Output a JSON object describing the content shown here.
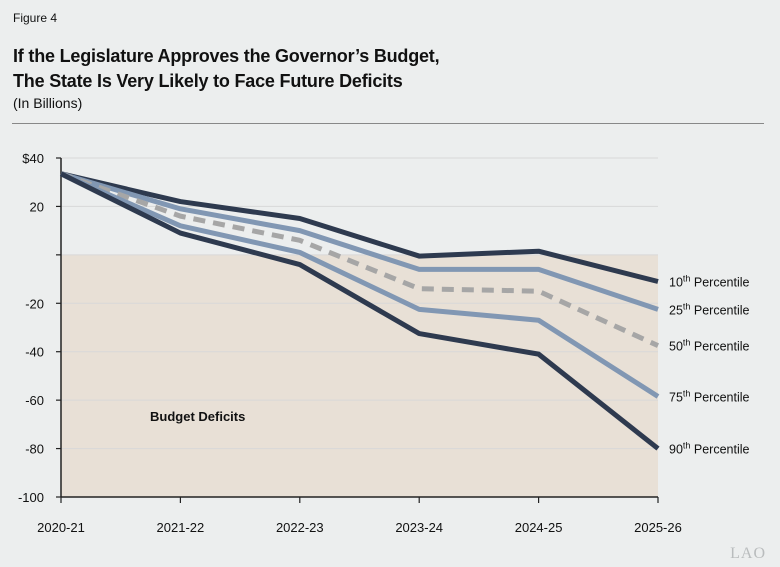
{
  "figure_label": "Figure 4",
  "title_line1": "If the Legislature Approves the Governor’s Budget,",
  "title_line2": "The State Is Very Likely to Face Future Deficits",
  "subtitle": "(In Billions)",
  "logo": "LAO",
  "chart_data": {
    "type": "line",
    "categories": [
      "2020-21",
      "2021-22",
      "2022-23",
      "2023-24",
      "2024-25",
      "2025-26"
    ],
    "ylim": [
      -100,
      40
    ],
    "yticks": [
      40,
      20,
      0,
      -20,
      -40,
      -60,
      -80,
      -100
    ],
    "ytick_labels": [
      "$40",
      "20",
      "",
      "-20",
      "-40",
      "-60",
      "-80",
      "-100"
    ],
    "grid": true,
    "shaded_region": {
      "label": "Budget Deficits",
      "from": -100,
      "to": 0,
      "color": "#e8e0d6"
    },
    "series": [
      {
        "name": "10th Percentile",
        "ordinal": "10",
        "suffix": "th",
        "label_rest": " Percentile",
        "color": "#2e3a4f",
        "dashed": false,
        "values": [
          33.5,
          22,
          15,
          -0.5,
          1.5,
          -11
        ]
      },
      {
        "name": "25th Percentile",
        "ordinal": "25",
        "suffix": "th",
        "label_rest": " Percentile",
        "color": "#8197b3",
        "dashed": false,
        "values": [
          33.5,
          19,
          10,
          -6,
          -6,
          -22.5
        ]
      },
      {
        "name": "50th Percentile",
        "ordinal": "50",
        "suffix": "th",
        "label_rest": " Percentile",
        "color": "#a6a6a6",
        "dashed": true,
        "values": [
          33.5,
          16,
          6,
          -14,
          -15,
          -37.5
        ]
      },
      {
        "name": "75th Percentile",
        "ordinal": "75",
        "suffix": "th",
        "label_rest": " Percentile",
        "color": "#8197b3",
        "dashed": false,
        "values": [
          33.5,
          12,
          1,
          -22.5,
          -27,
          -58.5
        ]
      },
      {
        "name": "90th Percentile",
        "ordinal": "90",
        "suffix": "th",
        "label_rest": " Percentile",
        "color": "#2e3a4f",
        "dashed": false,
        "values": [
          33.5,
          9,
          -4,
          -32.5,
          -41,
          -80
        ]
      }
    ]
  }
}
